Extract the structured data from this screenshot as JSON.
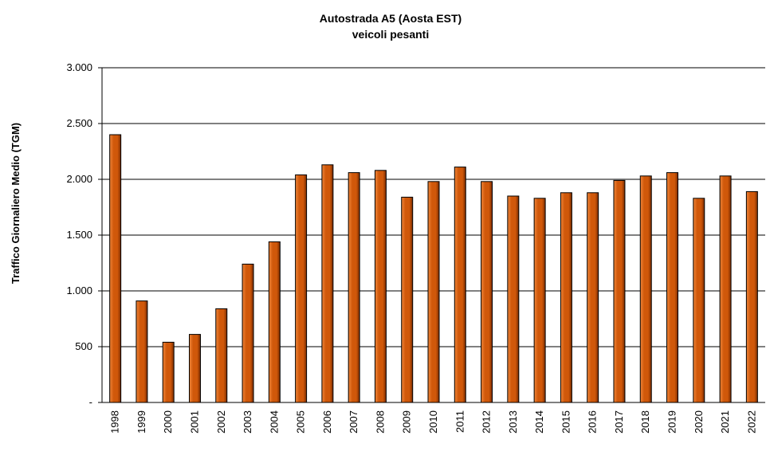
{
  "chart_data": {
    "type": "bar",
    "title": "Autostrada A5 (Aosta EST)",
    "subtitle": "veicoli pesanti",
    "xlabel": "",
    "ylabel": "Traffico Giornaliero Medio (TGM)",
    "ylim": [
      0,
      3000
    ],
    "yticks": [
      0,
      500,
      1000,
      1500,
      2000,
      2500,
      3000
    ],
    "ytick_labels": [
      "-",
      "500",
      "1.000",
      "1.500",
      "2.000",
      "2.500",
      "3.000"
    ],
    "grid": true,
    "legend": "none",
    "categories": [
      "1998",
      "1999",
      "2000",
      "2001",
      "2002",
      "2003",
      "2004",
      "2005",
      "2006",
      "2007",
      "2008",
      "2009",
      "2010",
      "2011",
      "2012",
      "2013",
      "2014",
      "2015",
      "2016",
      "2017",
      "2018",
      "2019",
      "2020",
      "2021",
      "2022"
    ],
    "values": [
      2400,
      910,
      540,
      610,
      840,
      1240,
      1440,
      2040,
      2130,
      2060,
      2080,
      1840,
      1980,
      2110,
      1980,
      1850,
      1830,
      1880,
      1880,
      1990,
      2030,
      2060,
      1830,
      2030,
      1890
    ],
    "colors": {
      "bar_light": "#f0863a",
      "bar_mid": "#d0580a",
      "bar_dark": "#7a2c00",
      "bar_stroke": "#000000",
      "grid": "#000000"
    }
  }
}
